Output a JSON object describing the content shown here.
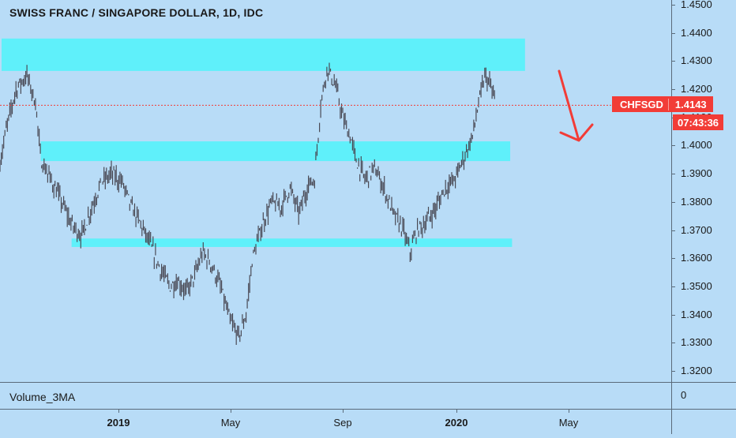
{
  "header": {
    "title": "SWISS FRANC / SINGAPORE DOLLAR, 1D, IDC"
  },
  "indicator": {
    "label": "Volume_3MA",
    "axis_value": "0"
  },
  "price_scale": {
    "ticks": [
      "1.4500",
      "1.4400",
      "1.4300",
      "1.4200",
      "1.4100",
      "1.4000",
      "1.3900",
      "1.3800",
      "1.3700",
      "1.3600",
      "1.3500",
      "1.3400",
      "1.3300",
      "1.3200"
    ]
  },
  "time_scale": {
    "ticks": [
      {
        "label": "2019",
        "bold": true
      },
      {
        "label": "May",
        "bold": false
      },
      {
        "label": "Sep",
        "bold": false
      },
      {
        "label": "2020",
        "bold": true
      },
      {
        "label": "May",
        "bold": false
      }
    ]
  },
  "last_price": {
    "symbol": "CHFSGD",
    "value": "1.4143",
    "countdown": "07:43:36"
  },
  "colors": {
    "background": "#b8dcf7",
    "zone": "#5ff0fa",
    "candle": "#4a4a55",
    "price_line": "#f23c37",
    "arrow": "#f23c37"
  },
  "chart_data": {
    "type": "line",
    "style": "ohlc-bars",
    "title": "SWISS FRANC / SINGAPORE DOLLAR, 1D, IDC",
    "x_range": [
      "2018-09",
      "2020-05"
    ],
    "ylim": [
      1.315,
      1.452
    ],
    "grid": false,
    "series": [
      {
        "name": "CHFSGD",
        "points": [
          [
            "2018-09-01",
            1.388
          ],
          [
            "2018-09-10",
            1.405
          ],
          [
            "2018-09-20",
            1.42
          ],
          [
            "2018-10-01",
            1.425
          ],
          [
            "2018-10-10",
            1.415
          ],
          [
            "2018-10-15",
            1.395
          ],
          [
            "2018-10-25",
            1.388
          ],
          [
            "2018-11-05",
            1.38
          ],
          [
            "2018-11-15",
            1.372
          ],
          [
            "2018-11-25",
            1.368
          ],
          [
            "2018-12-05",
            1.378
          ],
          [
            "2018-12-15",
            1.387
          ],
          [
            "2018-12-25",
            1.39
          ],
          [
            "2019-01-05",
            1.387
          ],
          [
            "2019-01-15",
            1.378
          ],
          [
            "2019-01-25",
            1.372
          ],
          [
            "2019-02-05",
            1.364
          ],
          [
            "2019-02-15",
            1.356
          ],
          [
            "2019-02-25",
            1.35
          ],
          [
            "2019-03-05",
            1.352
          ],
          [
            "2019-03-15",
            1.348
          ],
          [
            "2019-03-25",
            1.355
          ],
          [
            "2019-04-01",
            1.362
          ],
          [
            "2019-04-10",
            1.358
          ],
          [
            "2019-04-20",
            1.35
          ],
          [
            "2019-04-30",
            1.338
          ],
          [
            "2019-05-10",
            1.332
          ],
          [
            "2019-05-18",
            1.34
          ],
          [
            "2019-05-25",
            1.36
          ],
          [
            "2019-06-05",
            1.372
          ],
          [
            "2019-06-15",
            1.38
          ],
          [
            "2019-06-25",
            1.378
          ],
          [
            "2019-07-05",
            1.385
          ],
          [
            "2019-07-15",
            1.376
          ],
          [
            "2019-07-25",
            1.386
          ],
          [
            "2019-08-01",
            1.388
          ],
          [
            "2019-08-08",
            1.415
          ],
          [
            "2019-08-15",
            1.428
          ],
          [
            "2019-08-25",
            1.42
          ],
          [
            "2019-09-01",
            1.41
          ],
          [
            "2019-09-10",
            1.402
          ],
          [
            "2019-09-15",
            1.395
          ],
          [
            "2019-09-25",
            1.388
          ],
          [
            "2019-10-05",
            1.392
          ],
          [
            "2019-10-15",
            1.385
          ],
          [
            "2019-10-25",
            1.376
          ],
          [
            "2019-11-05",
            1.37
          ],
          [
            "2019-11-12",
            1.362
          ],
          [
            "2019-11-20",
            1.37
          ],
          [
            "2019-11-30",
            1.373
          ],
          [
            "2019-12-10",
            1.378
          ],
          [
            "2019-12-20",
            1.385
          ],
          [
            "2019-12-30",
            1.388
          ],
          [
            "2020-01-08",
            1.395
          ],
          [
            "2020-01-18",
            1.403
          ],
          [
            "2020-01-25",
            1.415
          ],
          [
            "2020-02-01",
            1.425
          ],
          [
            "2020-02-08",
            1.42
          ],
          [
            "2020-02-12",
            1.4143
          ]
        ]
      }
    ],
    "zones": [
      {
        "from_date": "2018-09-01",
        "to_date": "2020-03-15",
        "low": 1.4265,
        "high": 1.438
      },
      {
        "from_date": "2018-10-15",
        "to_date": "2020-02-28",
        "low": 1.3945,
        "high": 1.4015
      },
      {
        "from_date": "2018-11-15",
        "to_date": "2020-03-01",
        "low": 1.364,
        "high": 1.367
      }
    ],
    "last_price_line": 1.4143
  }
}
